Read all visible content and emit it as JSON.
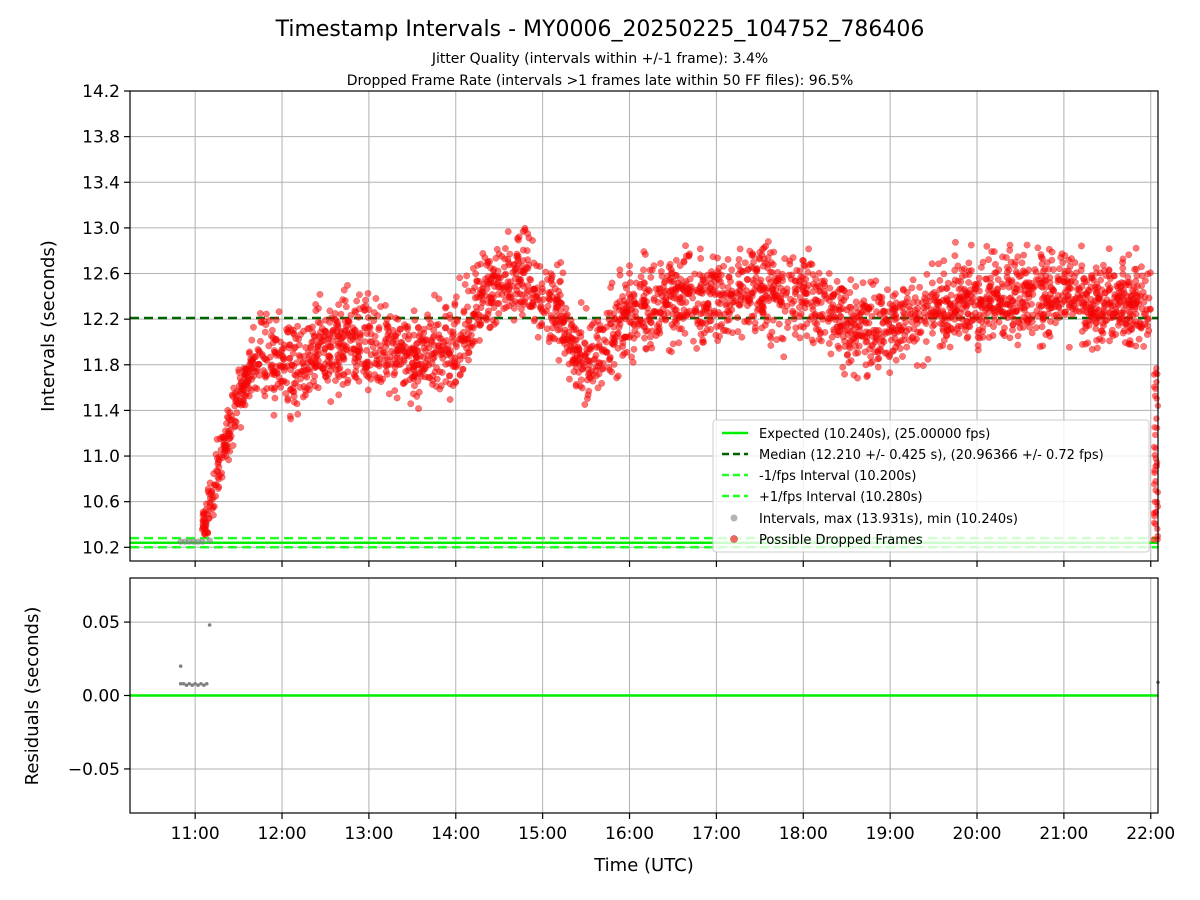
{
  "figure": {
    "title": "Timestamp Intervals - MY0006_20250225_104752_786406",
    "subtitle1": "Jitter Quality (intervals within +/-1 frame): 3.4%",
    "subtitle2": "Dropped Frame Rate (intervals >1 frames late within 50 FF files): 96.5%"
  },
  "colors": {
    "expected": "#00ee00",
    "median": "#006400",
    "band": "#22ff22",
    "intervals": "#808080",
    "dropped": "#ff0000",
    "grid": "#b0b0b0"
  },
  "chart_data": [
    {
      "type": "scatter",
      "ylabel": "Intervals (seconds)",
      "xlim": [
        "10:15",
        "22:05"
      ],
      "ylim": [
        10.08,
        14.2
      ],
      "yticks": [
        "10.2",
        "10.6",
        "11.0",
        "11.4",
        "11.8",
        "12.2",
        "12.6",
        "13.0",
        "13.4",
        "13.8",
        "14.2"
      ],
      "xticks": [
        "11:00",
        "12:00",
        "13:00",
        "14:00",
        "15:00",
        "16:00",
        "17:00",
        "18:00",
        "19:00",
        "20:00",
        "21:00",
        "22:00"
      ],
      "grid": true,
      "legend_position": "lower-right",
      "lines": [
        {
          "name": "Expected (10.240s), (25.00000 fps)",
          "y": 10.24,
          "style": "solid",
          "color": "#00ee00"
        },
        {
          "name": "Median (12.210 +/- 0.425 s), (20.96366 +/- 0.72 fps)",
          "y": 12.21,
          "style": "dashed",
          "color": "#006400"
        },
        {
          "name": "-1/fps Interval (10.200s)",
          "y": 10.2,
          "style": "dashed",
          "color": "#22ff22"
        },
        {
          "name": "+1/fps Interval (10.280s)",
          "y": 10.28,
          "style": "dashed",
          "color": "#22ff22"
        }
      ],
      "series": [
        {
          "name": "Intervals, max (13.931s), min (10.240s)",
          "color": "#808080",
          "kind": "scatter"
        },
        {
          "name": "Possible Dropped Frames",
          "color": "#ff0000",
          "kind": "scatter"
        }
      ],
      "trend": {
        "x": [
          "10:50",
          "11:03",
          "11:15",
          "11:30",
          "11:45",
          "12:00",
          "12:30",
          "13:00",
          "13:30",
          "14:00",
          "14:20",
          "14:45",
          "15:10",
          "15:30",
          "16:00",
          "16:30",
          "17:00",
          "17:30",
          "18:00",
          "18:30",
          "19:00",
          "19:30",
          "20:00",
          "20:30",
          "21:00",
          "21:30",
          "22:00"
        ],
        "y": [
          10.24,
          10.24,
          10.85,
          11.5,
          11.95,
          11.75,
          11.95,
          12.0,
          11.85,
          11.95,
          12.4,
          12.6,
          12.3,
          11.75,
          12.3,
          12.35,
          12.4,
          12.45,
          12.45,
          12.15,
          12.1,
          12.3,
          12.35,
          12.45,
          12.4,
          12.35,
          12.3
        ]
      },
      "gray_points": [
        {
          "x": "10:50",
          "y": 10.25
        },
        {
          "x": "10:53",
          "y": 10.25
        },
        {
          "x": "10:56",
          "y": 10.25
        },
        {
          "x": "10:59",
          "y": 10.25
        },
        {
          "x": "11:02",
          "y": 10.25
        },
        {
          "x": "11:05",
          "y": 10.25
        },
        {
          "x": "11:08",
          "y": 10.41
        },
        {
          "x": "11:10",
          "y": 10.26
        }
      ],
      "dropped_count": 3200
    },
    {
      "type": "scatter",
      "ylabel": "Residuals (seconds)",
      "xlabel": "Time (UTC)",
      "xlim": [
        "10:15",
        "22:05"
      ],
      "ylim": [
        -0.08,
        0.08
      ],
      "yticks": [
        "−0.05",
        "0.00",
        "0.05"
      ],
      "ytick_values": [
        -0.05,
        0.0,
        0.05
      ],
      "xticks": [
        "11:00",
        "12:00",
        "13:00",
        "14:00",
        "15:00",
        "16:00",
        "17:00",
        "18:00",
        "19:00",
        "20:00",
        "21:00",
        "22:00"
      ],
      "grid": true,
      "zero_line": {
        "y": 0.0,
        "color": "#00ee00"
      },
      "points": [
        {
          "x": "10:50",
          "y": 0.02
        },
        {
          "x": "10:50",
          "y": 0.008
        },
        {
          "x": "10:52",
          "y": 0.008
        },
        {
          "x": "10:54",
          "y": 0.007
        },
        {
          "x": "10:56",
          "y": 0.008
        },
        {
          "x": "10:58",
          "y": 0.007
        },
        {
          "x": "11:00",
          "y": 0.008
        },
        {
          "x": "11:02",
          "y": 0.007
        },
        {
          "x": "11:04",
          "y": 0.008
        },
        {
          "x": "11:06",
          "y": 0.007
        },
        {
          "x": "11:08",
          "y": 0.008
        },
        {
          "x": "11:10",
          "y": 0.048
        },
        {
          "x": "22:05",
          "y": 0.009
        }
      ]
    }
  ]
}
